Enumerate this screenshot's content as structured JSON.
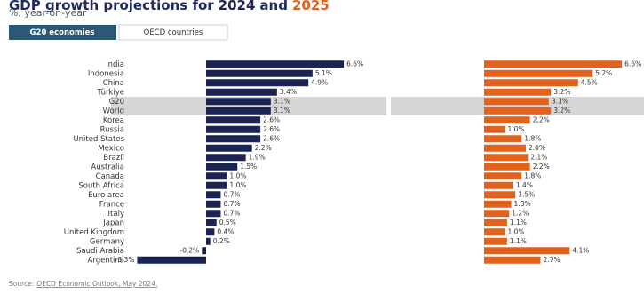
{
  "chart_data": {
    "type": "bar",
    "orientation": "horizontal",
    "title": "GDP growth projections for",
    "title_and": "and",
    "subtitle": "%, year-on-year",
    "tabs": [
      "G20 economies",
      "OECD countries"
    ],
    "source_label": "Source:",
    "source_link": "OECD Economic Outlook, May 2024.",
    "categories": [
      "India",
      "Indonesia",
      "China",
      "Türkiye",
      "G20",
      "World",
      "Korea",
      "Russia",
      "United States",
      "Mexico",
      "Brazil",
      "Australia",
      "Canada",
      "South Africa",
      "Euro area",
      "France",
      "Italy",
      "Japan",
      "United Kingdom",
      "Germany",
      "Saudi Arabia",
      "Argentina"
    ],
    "highlight_rows": [
      4,
      5
    ],
    "series": [
      {
        "name": "2024",
        "color": "#1c2454",
        "values": [
          6.6,
          5.1,
          4.9,
          3.4,
          3.1,
          3.1,
          2.6,
          2.6,
          2.6,
          2.2,
          1.9,
          1.5,
          1.0,
          1.0,
          0.7,
          0.7,
          0.7,
          0.5,
          0.4,
          0.2,
          -0.2,
          -3.3
        ],
        "value_labels": [
          "6.6%",
          "5.1%",
          "4.9%",
          "3.4%",
          "3.1%",
          "3.1%",
          "2.6%",
          "2.6%",
          "2.6%",
          "2.2%",
          "1.9%",
          "1.5%",
          "1.0%",
          "1.0%",
          "0.7%",
          "0.7%",
          "0.7%",
          "0.5%",
          "0.4%",
          "0.2%",
          "-0.2%",
          "-3.3%"
        ]
      },
      {
        "name": "2025",
        "color": "#e0621c",
        "values": [
          6.6,
          5.2,
          4.5,
          3.2,
          3.1,
          3.2,
          2.2,
          1.0,
          1.8,
          2.0,
          2.1,
          2.2,
          1.8,
          1.4,
          1.5,
          1.3,
          1.2,
          1.1,
          1.0,
          1.1,
          4.1,
          2.7
        ],
        "value_labels": [
          "6.6%",
          "5.2%",
          "4.5%",
          "3.2%",
          "3.1%",
          "3.2%",
          "2.2%",
          "1.0%",
          "1.8%",
          "2.0%",
          "2.1%",
          "2.2%",
          "1.8%",
          "1.4%",
          "1.5%",
          "1.3%",
          "1.2%",
          "1.1%",
          "1.0%",
          "1.1%",
          "4.1%",
          "2.7%"
        ]
      }
    ]
  }
}
